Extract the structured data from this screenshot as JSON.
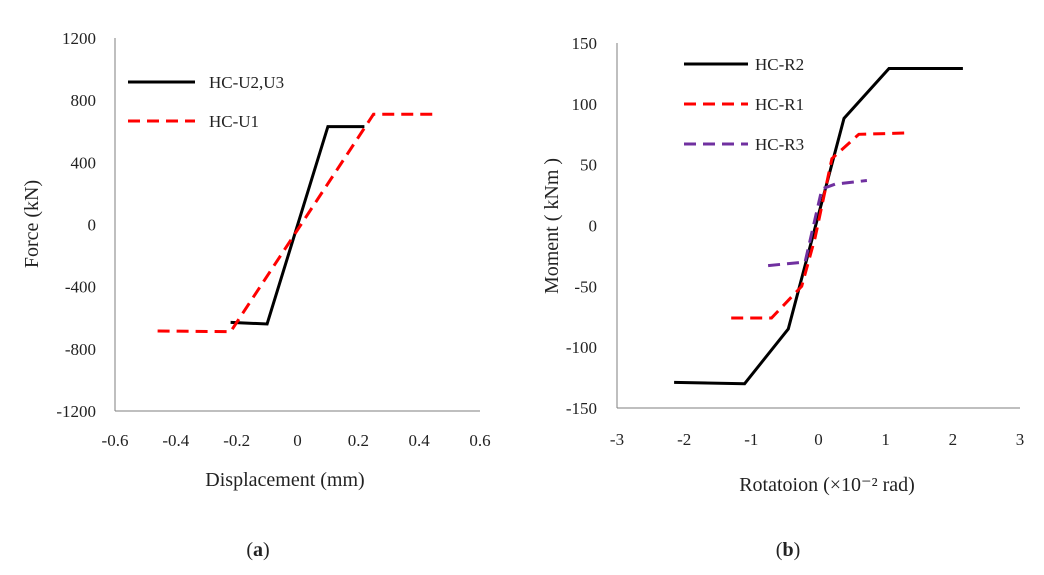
{
  "chart_data": [
    {
      "type": "line",
      "caption": "(a)",
      "caption_parts": [
        "(",
        "a",
        ")"
      ],
      "title": "",
      "xlabel": "Displacement (mm)",
      "ylabel": "Force (kN)",
      "xlim": [
        -0.6,
        0.6
      ],
      "ylim": [
        -1200,
        1200
      ],
      "xticks": [
        -0.6,
        -0.4,
        -0.2,
        0,
        0.2,
        0.4,
        0.6
      ],
      "xtick_labels": [
        "-0.6",
        "-0.4",
        "-0.2",
        "0",
        "0.2",
        "0.4",
        "0.6"
      ],
      "yticks": [
        -1200,
        -800,
        -400,
        0,
        400,
        800,
        1200
      ],
      "ytick_labels": [
        "-1200",
        "-800",
        "-400",
        "0",
        "400",
        "800",
        "1200"
      ],
      "grid": false,
      "legend": "top-left",
      "series": [
        {
          "name": "HC-U2,U3",
          "color": "#000000",
          "dash": "solid",
          "x": [
            -0.22,
            -0.1,
            0.1,
            0.22
          ],
          "y": [
            -630,
            -640,
            630,
            630
          ]
        },
        {
          "name": "HC-U1",
          "color": "#ff0000",
          "dash": "dashed",
          "x": [
            -0.46,
            -0.22,
            0.25,
            0.46
          ],
          "y": [
            -685,
            -690,
            710,
            710
          ]
        }
      ]
    },
    {
      "type": "line",
      "caption": "(b)",
      "caption_parts": [
        "(",
        "b",
        ")"
      ],
      "title": "",
      "xlabel": "Rotatoion (×10⁻² rad)",
      "ylabel": "Moment ( kNm )",
      "xlim": [
        -3,
        3
      ],
      "ylim": [
        -150,
        150
      ],
      "xticks": [
        -3,
        -2,
        -1,
        0,
        1,
        2,
        3
      ],
      "xtick_labels": [
        "-3",
        "-2",
        "-1",
        "0",
        "1",
        "2",
        "3"
      ],
      "yticks": [
        -150,
        -100,
        -50,
        0,
        50,
        100,
        150
      ],
      "ytick_labels": [
        "-150",
        "-100",
        "-50",
        "0",
        "50",
        "100",
        "150"
      ],
      "grid": false,
      "legend": "top-left",
      "series": [
        {
          "name": "HC-R2",
          "color": "#000000",
          "dash": "solid",
          "x": [
            -2.15,
            -1.1,
            -0.45,
            0.38,
            1.05,
            2.15
          ],
          "y": [
            -129,
            -130,
            -85,
            88,
            129,
            129
          ]
        },
        {
          "name": "HC-R1",
          "color": "#ff0000",
          "dash": "dashed",
          "x": [
            -1.3,
            -0.7,
            -0.25,
            -0.05,
            0.2,
            0.6,
            1.3
          ],
          "y": [
            -76,
            -76,
            -50,
            -10,
            55,
            75,
            76
          ]
        },
        {
          "name": "HC-R3",
          "color": "#7030a0",
          "dash": "dashed",
          "x": [
            -0.75,
            -0.2,
            0.05,
            0.25,
            0.72
          ],
          "y": [
            -33,
            -30,
            30,
            34,
            37
          ]
        }
      ]
    }
  ]
}
